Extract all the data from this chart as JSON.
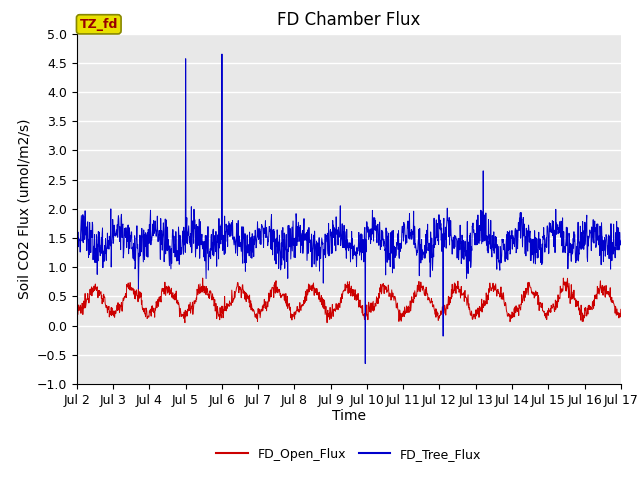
{
  "title": "FD Chamber Flux",
  "ylabel": "Soil CO2 Flux (umol/m2/s)",
  "xlabel": "Time",
  "ylim": [
    -1.0,
    5.0
  ],
  "yticks": [
    -1.0,
    -0.5,
    0.0,
    0.5,
    1.0,
    1.5,
    2.0,
    2.5,
    3.0,
    3.5,
    4.0,
    4.5,
    5.0
  ],
  "xtick_labels": [
    "Jul 2",
    "Jul 3",
    "Jul 4",
    "Jul 5",
    "Jul 6",
    "Jul 7",
    "Jul 8",
    "Jul 9",
    "Jul 10",
    "Jul 11",
    "Jul 12",
    "Jul 13",
    "Jul 14",
    "Jul 15",
    "Jul 16",
    "Jul 17"
  ],
  "color_open": "#cc0000",
  "color_tree": "#0000cc",
  "background_color": "#e8e8e8",
  "annotation_text": "TZ_fd",
  "annotation_bg": "#e8e000",
  "annotation_border": "#888800",
  "legend_labels": [
    "FD_Open_Flux",
    "FD_Tree_Flux"
  ],
  "title_fontsize": 12,
  "axis_label_fontsize": 10,
  "tick_fontsize": 9,
  "n_points": 1440
}
